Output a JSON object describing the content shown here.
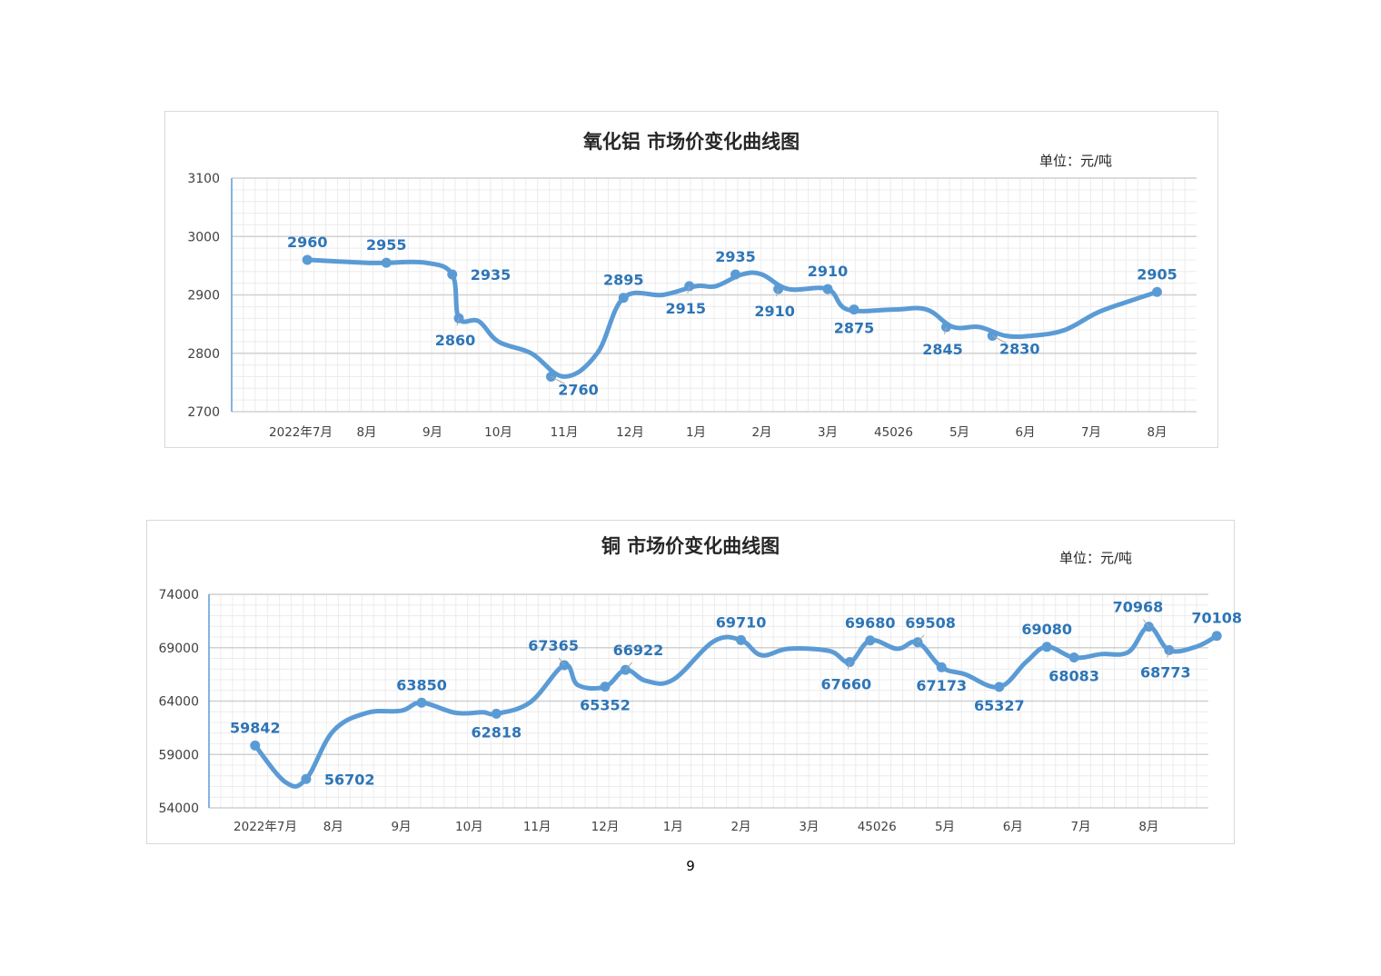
{
  "page": {
    "number": "9"
  },
  "chart_data": [
    {
      "type": "line",
      "title": "氧化铝 市场价变化曲线图",
      "unit_label": "单位：元/吨",
      "xlabel": "",
      "ylabel": "",
      "ylim": [
        2700,
        3100
      ],
      "yticks": [
        2700,
        2800,
        2900,
        3000,
        3100
      ],
      "categories": [
        "2022年7月",
        "8月",
        "9月",
        "10月",
        "11月",
        "12月",
        "1月",
        "2月",
        "3月",
        "45026",
        "5月",
        "6月",
        "7月",
        "8月"
      ],
      "grid": true,
      "color": "#5b9bd5",
      "series": [
        {
          "values": [
            [
              0.1,
              2960
            ],
            [
              1.0,
              2955
            ],
            [
              1.3,
              2955
            ],
            [
              1.9,
              2955
            ],
            [
              2.3,
              2935
            ],
            [
              2.4,
              2860
            ],
            [
              2.7,
              2855
            ],
            [
              3.0,
              2820
            ],
            [
              3.5,
              2800
            ],
            [
              4.0,
              2760
            ],
            [
              4.5,
              2800
            ],
            [
              4.9,
              2895
            ],
            [
              5.5,
              2900
            ],
            [
              6.0,
              2915
            ],
            [
              6.3,
              2915
            ],
            [
              6.7,
              2935
            ],
            [
              7.0,
              2935
            ],
            [
              7.4,
              2910
            ],
            [
              8.0,
              2910
            ],
            [
              8.3,
              2875
            ],
            [
              9.0,
              2875
            ],
            [
              9.5,
              2875
            ],
            [
              9.9,
              2845
            ],
            [
              10.3,
              2845
            ],
            [
              10.7,
              2830
            ],
            [
              11.1,
              2830
            ],
            [
              11.6,
              2840
            ],
            [
              12.1,
              2870
            ],
            [
              12.6,
              2890
            ],
            [
              13.0,
              2905
            ]
          ]
        }
      ],
      "points": [
        {
          "x": 0.1,
          "y": 2960,
          "label": "2960",
          "pos": "above"
        },
        {
          "x": 1.3,
          "y": 2955,
          "label": "2955",
          "pos": "above"
        },
        {
          "x": 2.3,
          "y": 2935,
          "label": "2935",
          "pos": "right"
        },
        {
          "x": 2.4,
          "y": 2860,
          "label": "2860",
          "pos": "below-left"
        },
        {
          "x": 3.8,
          "y": 2760,
          "label": "2760",
          "pos": "below-right"
        },
        {
          "x": 4.9,
          "y": 2895,
          "label": "2895",
          "pos": "above"
        },
        {
          "x": 5.9,
          "y": 2915,
          "label": "2915",
          "pos": "below-left"
        },
        {
          "x": 6.6,
          "y": 2935,
          "label": "2935",
          "pos": "above"
        },
        {
          "x": 7.25,
          "y": 2910,
          "label": "2910",
          "pos": "below-left"
        },
        {
          "x": 8.0,
          "y": 2910,
          "label": "2910",
          "pos": "above"
        },
        {
          "x": 8.4,
          "y": 2875,
          "label": "2875",
          "pos": "below"
        },
        {
          "x": 9.8,
          "y": 2845,
          "label": "2845",
          "pos": "below-left"
        },
        {
          "x": 10.5,
          "y": 2830,
          "label": "2830",
          "pos": "below-right"
        },
        {
          "x": 13.0,
          "y": 2905,
          "label": "2905",
          "pos": "above"
        }
      ]
    },
    {
      "type": "line",
      "title": "铜 市场价变化曲线图",
      "unit_label": "单位：元/吨",
      "xlabel": "",
      "ylabel": "",
      "ylim": [
        54000,
        74000
      ],
      "yticks": [
        54000,
        59000,
        64000,
        69000,
        74000
      ],
      "categories": [
        "2022年7月",
        "8月",
        "9月",
        "10月",
        "11月",
        "12月",
        "1月",
        "2月",
        "3月",
        "45026",
        "5月",
        "6月",
        "7月",
        "8月"
      ],
      "grid": true,
      "color": "#5b9bd5",
      "series": [
        {
          "values": [
            [
              -0.15,
              59842
            ],
            [
              0.3,
              56400
            ],
            [
              0.6,
              56702
            ],
            [
              1.0,
              61200
            ],
            [
              1.5,
              62900
            ],
            [
              2.0,
              63100
            ],
            [
              2.3,
              63850
            ],
            [
              2.8,
              62900
            ],
            [
              3.2,
              62950
            ],
            [
              3.4,
              62818
            ],
            [
              3.9,
              63900
            ],
            [
              4.4,
              67365
            ],
            [
              4.6,
              65500
            ],
            [
              5.0,
              65352
            ],
            [
              5.3,
              66922
            ],
            [
              5.6,
              65900
            ],
            [
              6.0,
              66000
            ],
            [
              6.6,
              69600
            ],
            [
              7.0,
              69710
            ],
            [
              7.3,
              68300
            ],
            [
              7.7,
              68900
            ],
            [
              8.3,
              68700
            ],
            [
              8.6,
              67660
            ],
            [
              8.9,
              69680
            ],
            [
              9.3,
              68900
            ],
            [
              9.6,
              69508
            ],
            [
              9.95,
              67173
            ],
            [
              10.3,
              66500
            ],
            [
              10.8,
              65327
            ],
            [
              11.2,
              67700
            ],
            [
              11.5,
              69080
            ],
            [
              11.9,
              68083
            ],
            [
              12.3,
              68400
            ],
            [
              12.7,
              68600
            ],
            [
              13.0,
              70968
            ],
            [
              13.3,
              68773
            ],
            [
              13.7,
              69100
            ],
            [
              14.0,
              70108
            ]
          ]
        }
      ],
      "points": [
        {
          "x": -0.15,
          "y": 59842,
          "label": "59842",
          "pos": "above"
        },
        {
          "x": 0.6,
          "y": 56702,
          "label": "56702",
          "pos": "right"
        },
        {
          "x": 2.3,
          "y": 63850,
          "label": "63850",
          "pos": "above"
        },
        {
          "x": 3.4,
          "y": 62818,
          "label": "62818",
          "pos": "below"
        },
        {
          "x": 4.4,
          "y": 67365,
          "label": "67365",
          "pos": "above-left"
        },
        {
          "x": 5.0,
          "y": 65352,
          "label": "65352",
          "pos": "below"
        },
        {
          "x": 5.3,
          "y": 66922,
          "label": "66922",
          "pos": "above-right"
        },
        {
          "x": 7.0,
          "y": 69710,
          "label": "69710",
          "pos": "above"
        },
        {
          "x": 8.6,
          "y": 67660,
          "label": "67660",
          "pos": "below-left"
        },
        {
          "x": 8.9,
          "y": 69680,
          "label": "69680",
          "pos": "above"
        },
        {
          "x": 9.6,
          "y": 69508,
          "label": "69508",
          "pos": "above-right"
        },
        {
          "x": 9.95,
          "y": 67173,
          "label": "67173",
          "pos": "below"
        },
        {
          "x": 10.8,
          "y": 65327,
          "label": "65327",
          "pos": "below"
        },
        {
          "x": 11.5,
          "y": 69080,
          "label": "69080",
          "pos": "above"
        },
        {
          "x": 11.9,
          "y": 68083,
          "label": "68083",
          "pos": "below"
        },
        {
          "x": 13.0,
          "y": 70968,
          "label": "70968",
          "pos": "above-left"
        },
        {
          "x": 13.3,
          "y": 68773,
          "label": "68773",
          "pos": "below-left"
        },
        {
          "x": 14.0,
          "y": 70108,
          "label": "70108",
          "pos": "above"
        }
      ]
    }
  ]
}
